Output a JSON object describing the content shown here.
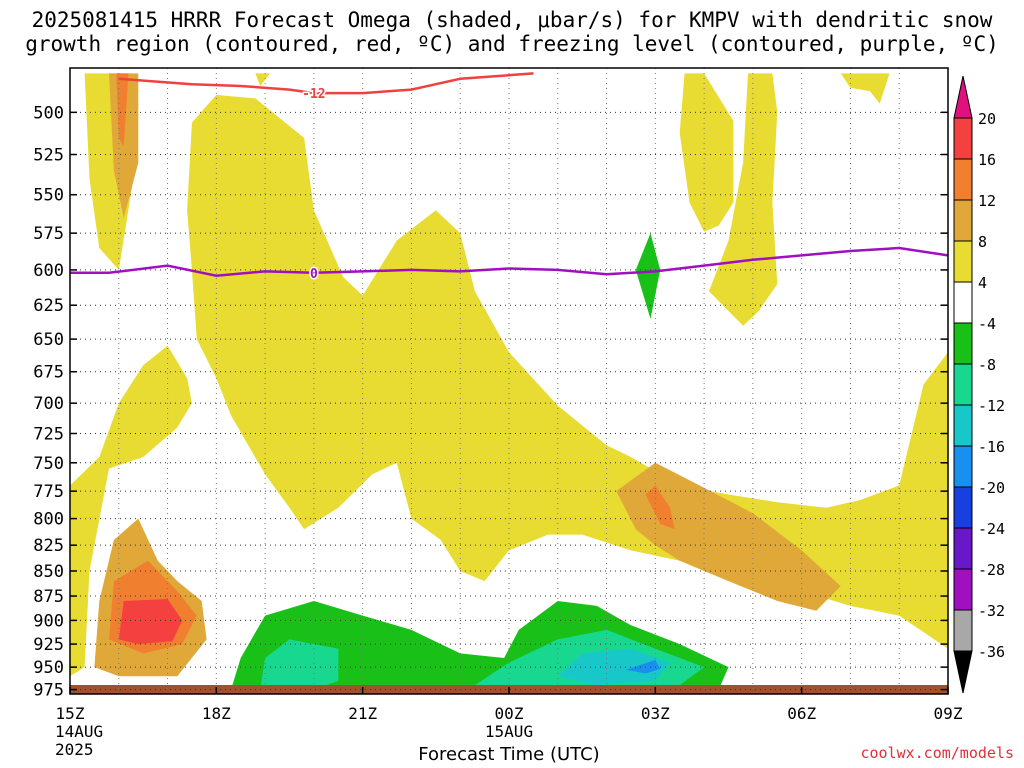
{
  "title_line1": "2025081415 HRRR Forecast Omega (shaded, μbar/s) for KMPV with dendritic snow",
  "title_line2": "growth region (contoured, red, ºC) and freezing level (contoured, purple, ºC)",
  "credit": "coolwx.com/models",
  "chart_data": {
    "type": "heatmap",
    "xlabel": "Forecast Time (UTC)",
    "ylabel": "",
    "x_ticks": [
      "15Z",
      "18Z",
      "21Z",
      "00Z",
      "03Z",
      "06Z",
      "09Z"
    ],
    "x_hours": [
      15,
      18,
      21,
      24,
      27,
      30,
      33
    ],
    "x_subticks": [
      {
        "hour": 15,
        "lines": [
          "14AUG",
          "2025"
        ]
      },
      {
        "hour": 24,
        "lines": [
          "15AUG"
        ]
      }
    ],
    "xlim": [
      15,
      33
    ],
    "y_ticks": [
      500,
      525,
      550,
      575,
      600,
      625,
      650,
      675,
      700,
      725,
      750,
      775,
      800,
      825,
      850,
      875,
      900,
      925,
      950,
      975
    ],
    "ylim_hPa": [
      475,
      980
    ],
    "y_scale": "log-pressure",
    "grid": true,
    "colorbar": {
      "ticks": [
        20,
        16,
        12,
        8,
        4,
        -4,
        -8,
        -12,
        -16,
        -20,
        -24,
        -28,
        -32,
        -36
      ],
      "colors": [
        "#e0107f",
        "#f54040",
        "#f08030",
        "#e0a838",
        "#e8dc32",
        "#ffffff",
        "#18c018",
        "#18d890",
        "#18c8c8",
        "#1890f0",
        "#1840e0",
        "#6818c8",
        "#a010c0",
        "#a8a8a8",
        "#000000"
      ],
      "units": "μbar/s"
    },
    "contours": [
      {
        "name": "dendritic snow growth region",
        "label": "-12",
        "color": "#f04040",
        "points": [
          [
            16.0,
            481
          ],
          [
            16.5,
            482
          ],
          [
            17.5,
            484
          ],
          [
            18.5,
            485
          ],
          [
            19.5,
            487
          ],
          [
            20.0,
            489
          ],
          [
            21.0,
            489
          ],
          [
            22.0,
            487
          ],
          [
            22.5,
            484
          ],
          [
            23.0,
            481
          ],
          [
            24.5,
            478
          ]
        ]
      },
      {
        "name": "freezing level",
        "label": "0",
        "color": "#a010c0",
        "points": [
          [
            15.0,
            602
          ],
          [
            15.8,
            602
          ],
          [
            17.0,
            597
          ],
          [
            18.0,
            604
          ],
          [
            19.0,
            601
          ],
          [
            20.0,
            602
          ],
          [
            21.0,
            601
          ],
          [
            22.0,
            600
          ],
          [
            23.0,
            601
          ],
          [
            24.0,
            599
          ],
          [
            25.0,
            600
          ],
          [
            26.0,
            603
          ],
          [
            27.0,
            601
          ],
          [
            28.0,
            597
          ],
          [
            29.0,
            593
          ],
          [
            30.0,
            590
          ],
          [
            31.0,
            587
          ],
          [
            32.0,
            585
          ],
          [
            33.0,
            590
          ]
        ]
      }
    ],
    "regions": [
      {
        "value": 4,
        "polygon": [
          [
            15.3,
            478
          ],
          [
            16.0,
            478
          ],
          [
            16.4,
            490
          ],
          [
            16.3,
            540
          ],
          [
            16.0,
            600
          ],
          [
            15.6,
            585
          ],
          [
            15.4,
            540
          ]
        ]
      },
      {
        "value": 8,
        "polygon": [
          [
            15.8,
            478
          ],
          [
            16.4,
            478
          ],
          [
            16.4,
            530
          ],
          [
            16.1,
            565
          ],
          [
            15.9,
            535
          ]
        ]
      },
      {
        "value": 12,
        "polygon": [
          [
            15.95,
            478
          ],
          [
            16.2,
            478
          ],
          [
            16.1,
            520
          ],
          [
            16.0,
            515
          ]
        ]
      },
      {
        "value": 4,
        "polygon": [
          [
            18.8,
            478
          ],
          [
            19.1,
            478
          ],
          [
            18.9,
            485
          ]
        ]
      },
      {
        "value": 4,
        "polygon": [
          [
            17.5,
            506
          ],
          [
            18.0,
            490
          ],
          [
            18.8,
            492
          ],
          [
            19.8,
            515
          ],
          [
            20.0,
            560
          ],
          [
            20.6,
            605
          ],
          [
            21.0,
            618
          ],
          [
            21.7,
            580
          ],
          [
            22.5,
            560
          ],
          [
            23.0,
            575
          ],
          [
            23.3,
            615
          ],
          [
            24.0,
            660
          ],
          [
            25.0,
            702
          ],
          [
            26.0,
            735
          ],
          [
            26.5,
            745
          ],
          [
            27.5,
            770
          ],
          [
            28.5,
            778
          ],
          [
            29.5,
            785
          ],
          [
            30.5,
            790
          ],
          [
            31.2,
            783
          ],
          [
            32.0,
            770
          ],
          [
            32.5,
            685
          ],
          [
            33.0,
            660
          ],
          [
            33.0,
            930
          ],
          [
            32.0,
            895
          ],
          [
            31.0,
            885
          ],
          [
            30.0,
            870
          ],
          [
            29.5,
            865
          ],
          [
            28.5,
            855
          ],
          [
            27.5,
            840
          ],
          [
            26.5,
            830
          ],
          [
            25.5,
            815
          ],
          [
            24.8,
            815
          ],
          [
            24.0,
            830
          ],
          [
            23.5,
            860
          ],
          [
            23.0,
            850
          ],
          [
            22.6,
            820
          ],
          [
            22.0,
            800
          ],
          [
            21.7,
            750
          ],
          [
            21.2,
            760
          ],
          [
            20.5,
            790
          ],
          [
            19.8,
            810
          ],
          [
            19.5,
            790
          ],
          [
            19.0,
            760
          ],
          [
            18.3,
            710
          ],
          [
            18.0,
            680
          ],
          [
            17.6,
            650
          ],
          [
            17.5,
            600
          ],
          [
            17.4,
            560
          ]
        ]
      },
      {
        "value": 4,
        "polygon": [
          [
            27.6,
            478
          ],
          [
            28.0,
            478
          ],
          [
            28.6,
            505
          ],
          [
            28.6,
            555
          ],
          [
            28.3,
            570
          ],
          [
            28.0,
            574
          ],
          [
            27.7,
            555
          ],
          [
            27.5,
            512
          ]
        ]
      },
      {
        "value": 4,
        "polygon": [
          [
            28.9,
            478
          ],
          [
            29.4,
            478
          ],
          [
            29.5,
            500
          ],
          [
            29.4,
            555
          ],
          [
            29.5,
            610
          ],
          [
            29.1,
            630
          ],
          [
            28.8,
            640
          ],
          [
            28.1,
            615
          ],
          [
            28.5,
            580
          ],
          [
            28.8,
            530
          ]
        ]
      },
      {
        "value": 4,
        "polygon": [
          [
            30.8,
            478
          ],
          [
            31.8,
            478
          ],
          [
            31.6,
            495
          ],
          [
            31.4,
            488
          ],
          [
            31.0,
            486
          ]
        ]
      },
      {
        "value": 4,
        "polygon": [
          [
            15.3,
            950
          ],
          [
            15.4,
            850
          ],
          [
            15.8,
            755
          ],
          [
            16.5,
            745
          ],
          [
            17.2,
            720
          ],
          [
            17.5,
            700
          ],
          [
            17.4,
            680
          ],
          [
            17.0,
            655
          ],
          [
            16.5,
            670
          ],
          [
            16.0,
            700
          ],
          [
            15.6,
            745
          ],
          [
            15.0,
            770
          ],
          [
            15.0,
            960
          ]
        ]
      },
      {
        "value": 8,
        "polygon": [
          [
            15.5,
            950
          ],
          [
            15.6,
            880
          ],
          [
            15.9,
            820
          ],
          [
            16.4,
            800
          ],
          [
            16.8,
            840
          ],
          [
            17.2,
            860
          ],
          [
            17.7,
            880
          ],
          [
            17.8,
            920
          ],
          [
            17.2,
            960
          ],
          [
            16.0,
            960
          ]
        ]
      },
      {
        "value": 12,
        "polygon": [
          [
            15.8,
            920
          ],
          [
            15.9,
            860
          ],
          [
            16.6,
            840
          ],
          [
            17.2,
            870
          ],
          [
            17.6,
            895
          ],
          [
            17.3,
            925
          ],
          [
            16.5,
            935
          ]
        ]
      },
      {
        "value": 16,
        "polygon": [
          [
            16.0,
            920
          ],
          [
            16.1,
            880
          ],
          [
            17.0,
            878
          ],
          [
            17.3,
            900
          ],
          [
            17.1,
            922
          ],
          [
            16.4,
            925
          ]
        ]
      },
      {
        "value": 8,
        "polygon": [
          [
            26.2,
            775
          ],
          [
            27.0,
            750
          ],
          [
            28.0,
            772
          ],
          [
            29.0,
            795
          ],
          [
            30.0,
            830
          ],
          [
            30.8,
            865
          ],
          [
            30.3,
            890
          ],
          [
            29.5,
            880
          ],
          [
            28.5,
            860
          ],
          [
            27.5,
            840
          ],
          [
            27.0,
            825
          ],
          [
            26.6,
            810
          ]
        ]
      },
      {
        "value": 12,
        "polygon": [
          [
            26.8,
            778
          ],
          [
            27.0,
            770
          ],
          [
            27.3,
            790
          ],
          [
            27.4,
            810
          ],
          [
            27.1,
            805
          ]
        ]
      },
      {
        "value": -4,
        "polygon": [
          [
            26.6,
            600
          ],
          [
            26.9,
            575
          ],
          [
            27.1,
            600
          ],
          [
            26.9,
            635
          ]
        ]
      },
      {
        "value": -4,
        "polygon": [
          [
            18.3,
            975
          ],
          [
            18.5,
            940
          ],
          [
            19.0,
            895
          ],
          [
            20.0,
            880
          ],
          [
            21.0,
            895
          ],
          [
            22.0,
            910
          ],
          [
            23.0,
            935
          ],
          [
            23.9,
            940
          ],
          [
            24.2,
            910
          ],
          [
            25.0,
            880
          ],
          [
            25.8,
            885
          ],
          [
            26.5,
            905
          ],
          [
            27.5,
            925
          ],
          [
            28.5,
            950
          ],
          [
            28.3,
            975
          ],
          [
            23.5,
            975
          ]
        ]
      },
      {
        "value": -8,
        "polygon": [
          [
            18.9,
            975
          ],
          [
            19.0,
            940
          ],
          [
            19.5,
            920
          ],
          [
            20.5,
            930
          ],
          [
            20.5,
            965
          ],
          [
            20.0,
            975
          ]
        ]
      },
      {
        "value": -8,
        "polygon": [
          [
            23.3,
            970
          ],
          [
            24.0,
            945
          ],
          [
            25.0,
            920
          ],
          [
            26.0,
            910
          ],
          [
            27.0,
            930
          ],
          [
            28.0,
            950
          ],
          [
            27.5,
            970
          ],
          [
            25.0,
            975
          ]
        ]
      },
      {
        "value": -12,
        "polygon": [
          [
            25.0,
            960
          ],
          [
            25.5,
            935
          ],
          [
            26.5,
            930
          ],
          [
            27.3,
            945
          ],
          [
            27.0,
            965
          ],
          [
            25.8,
            970
          ]
        ]
      },
      {
        "value": -16,
        "polygon": [
          [
            26.4,
            953
          ],
          [
            27.0,
            942
          ],
          [
            27.1,
            952
          ],
          [
            26.8,
            957
          ]
        ]
      }
    ]
  }
}
